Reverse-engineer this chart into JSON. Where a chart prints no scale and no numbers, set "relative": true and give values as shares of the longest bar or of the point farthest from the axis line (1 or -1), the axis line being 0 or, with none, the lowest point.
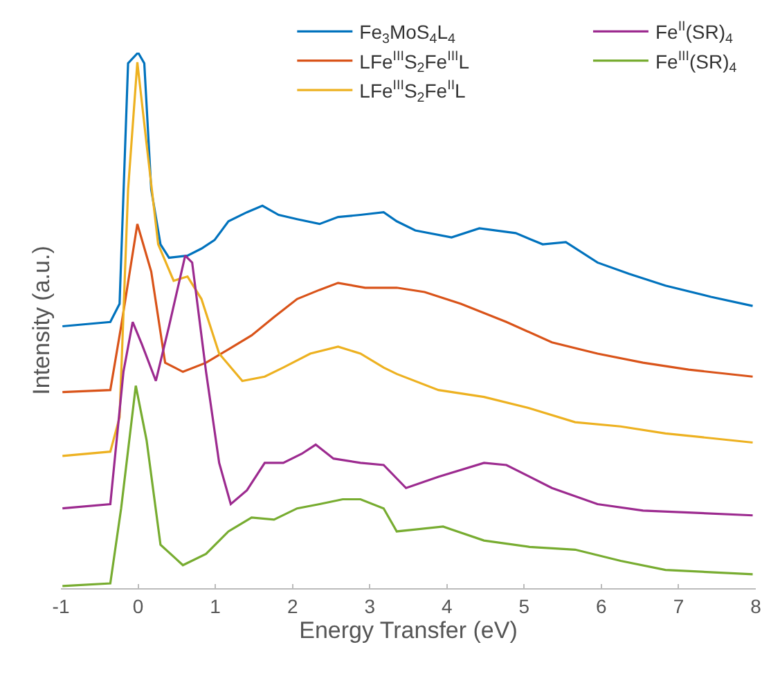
{
  "chart_data": {
    "type": "line",
    "relative": true,
    "xlabel": "Energy Transfer (eV)",
    "ylabel": "Intensity (a.u.)",
    "xlim": [
      -1,
      8
    ],
    "xticks": [
      -1,
      0,
      1,
      2,
      3,
      4,
      5,
      6,
      7,
      8
    ],
    "legend": "top right",
    "line_style": "solid",
    "marker": "none",
    "series": [
      {
        "name": "Fe$_{3}$MoS$_{4}$L$_{4}$",
        "color": "#0072bd",
        "x": [
          -0.98,
          -0.36,
          -0.24,
          -0.13,
          0.0,
          0.08,
          0.17,
          0.29,
          0.4,
          0.64,
          0.82,
          0.99,
          1.17,
          1.41,
          1.61,
          1.82,
          2.06,
          2.35,
          2.59,
          2.88,
          3.18,
          3.35,
          3.59,
          4.06,
          4.42,
          4.89,
          5.24,
          5.54,
          5.95,
          6.36,
          6.83,
          7.42,
          7.96
        ],
        "values": [
          0.489,
          0.497,
          0.531,
          0.98,
          1.0,
          0.98,
          0.744,
          0.642,
          0.617,
          0.621,
          0.634,
          0.65,
          0.685,
          0.702,
          0.714,
          0.697,
          0.689,
          0.68,
          0.693,
          0.697,
          0.702,
          0.685,
          0.668,
          0.655,
          0.672,
          0.663,
          0.642,
          0.646,
          0.608,
          0.587,
          0.565,
          0.544,
          0.527
        ]
      },
      {
        "name": "LFe$^{III}$S$_{2}$Fe$^{III}$L",
        "color": "#d95319",
        "x": [
          -0.98,
          -0.36,
          -0.22,
          -0.01,
          0.17,
          0.35,
          0.58,
          0.88,
          1.17,
          1.47,
          1.76,
          2.06,
          2.35,
          2.59,
          2.94,
          3.18,
          3.35,
          3.71,
          4.18,
          4.77,
          5.36,
          5.95,
          6.54,
          7.13,
          7.96
        ],
        "values": [
          0.366,
          0.37,
          0.489,
          0.68,
          0.591,
          0.421,
          0.404,
          0.421,
          0.446,
          0.472,
          0.506,
          0.54,
          0.557,
          0.57,
          0.561,
          0.561,
          0.561,
          0.553,
          0.531,
          0.497,
          0.459,
          0.438,
          0.421,
          0.408,
          0.395
        ]
      },
      {
        "name": "LFe$^{III}$S$_{2}$Fe$^{II}$L",
        "color": "#edb120",
        "x": [
          -0.98,
          -0.36,
          -0.24,
          -0.13,
          -0.01,
          0.11,
          0.26,
          0.46,
          0.64,
          0.82,
          1.05,
          1.35,
          1.64,
          1.88,
          2.23,
          2.59,
          2.88,
          3.18,
          3.35,
          3.89,
          4.48,
          5.07,
          5.66,
          6.25,
          6.83,
          7.96
        ],
        "values": [
          0.247,
          0.255,
          0.319,
          0.744,
          0.982,
          0.829,
          0.642,
          0.574,
          0.582,
          0.54,
          0.438,
          0.387,
          0.395,
          0.412,
          0.438,
          0.451,
          0.438,
          0.412,
          0.4,
          0.37,
          0.357,
          0.336,
          0.31,
          0.302,
          0.289,
          0.272
        ]
      },
      {
        "name": "Fe$^{II}$(SR)$_{4}$",
        "color": "#9c2a8f",
        "x": [
          -0.98,
          -0.36,
          -0.19,
          -0.07,
          0.05,
          0.23,
          0.4,
          0.61,
          0.7,
          0.88,
          1.05,
          1.2,
          1.41,
          1.64,
          1.88,
          2.12,
          2.3,
          2.53,
          2.88,
          3.18,
          3.47,
          3.89,
          4.48,
          4.77,
          5.36,
          5.95,
          6.54,
          7.96
        ],
        "values": [
          0.149,
          0.157,
          0.404,
          0.497,
          0.455,
          0.387,
          0.489,
          0.621,
          0.608,
          0.404,
          0.234,
          0.157,
          0.183,
          0.234,
          0.234,
          0.251,
          0.268,
          0.242,
          0.234,
          0.23,
          0.187,
          0.208,
          0.234,
          0.23,
          0.187,
          0.157,
          0.145,
          0.136
        ]
      },
      {
        "name": "Fe$^{III}$(SR)$_{4}$",
        "color": "#77ac30",
        "x": [
          -0.98,
          -0.36,
          -0.22,
          -0.03,
          0.11,
          0.29,
          0.58,
          0.88,
          1.17,
          1.47,
          1.76,
          2.06,
          2.35,
          2.65,
          2.88,
          3.18,
          3.35,
          3.95,
          4.48,
          5.07,
          5.66,
          6.25,
          6.83,
          7.96
        ],
        "values": [
          0.004,
          0.009,
          0.149,
          0.378,
          0.276,
          0.081,
          0.043,
          0.064,
          0.106,
          0.132,
          0.128,
          0.149,
          0.157,
          0.166,
          0.166,
          0.149,
          0.106,
          0.115,
          0.089,
          0.077,
          0.072,
          0.051,
          0.034,
          0.026
        ]
      }
    ]
  }
}
